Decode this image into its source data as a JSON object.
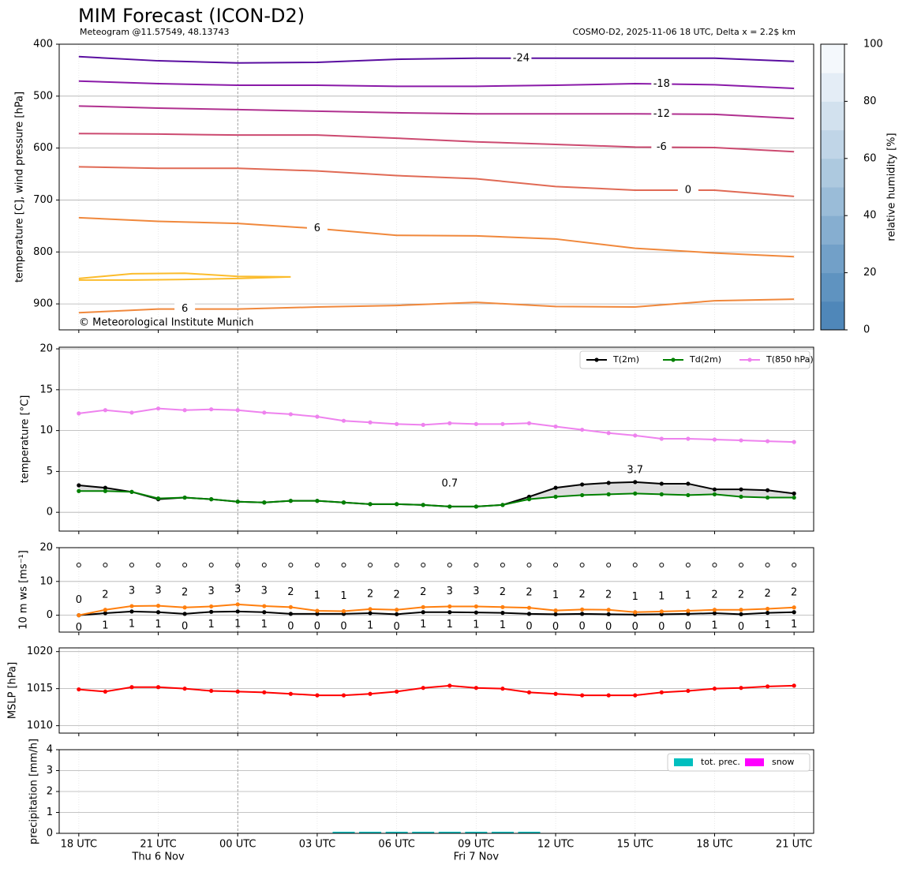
{
  "chart_data": [
    {
      "type": "contour",
      "title": "MIM Forecast (ICON-D2)",
      "subtitle": "Meteogram @11.57549, 48.13743",
      "info": "COSMO-D2, 2025-11-06 18 UTC, Delta x = 2.2$ km",
      "credit": "© Meteorological Institute Munich",
      "ylabel": "temperature [C], wind pressure [hPa]",
      "xlim": [
        -0.74,
        27.74
      ],
      "ylim": [
        950,
        400
      ],
      "yticks": [
        400,
        500,
        600,
        700,
        800,
        900
      ],
      "grid": true,
      "contours": [
        {
          "level": -24,
          "color": "#5a0ea0",
          "x": [
            0,
            3,
            6,
            9,
            12,
            15,
            18,
            21,
            24,
            27
          ],
          "values": [
            424,
            432,
            436,
            435,
            429,
            427,
            427,
            427,
            427,
            433
          ]
        },
        {
          "level": -18,
          "color": "#8a1aa8",
          "x": [
            0,
            3,
            6,
            9,
            12,
            15,
            18,
            21,
            24,
            27
          ],
          "values": [
            471,
            476,
            479,
            479,
            481,
            481,
            479,
            476,
            478,
            485
          ]
        },
        {
          "level": -12,
          "color": "#b0308f",
          "x": [
            0,
            3,
            6,
            9,
            12,
            15,
            18,
            21,
            24,
            27
          ],
          "values": [
            519,
            523,
            526,
            529,
            532,
            534,
            534,
            534,
            535,
            543
          ]
        },
        {
          "level": -6,
          "color": "#cc4a70",
          "x": [
            0,
            3,
            6,
            9,
            12,
            15,
            18,
            21,
            24,
            27
          ],
          "values": [
            572,
            573,
            575,
            575,
            581,
            588,
            593,
            598,
            599,
            607
          ]
        },
        {
          "level": 0,
          "color": "#e06a55",
          "x": [
            0,
            3,
            6,
            9,
            12,
            15,
            18,
            21,
            24,
            27
          ],
          "values": [
            636,
            639,
            639,
            644,
            653,
            659,
            674,
            681,
            681,
            693
          ]
        },
        {
          "level": 6,
          "color": "#f0883c",
          "x": [
            0,
            3,
            6,
            9,
            12,
            15,
            18,
            21,
            24,
            27
          ],
          "values": [
            734,
            741,
            745,
            755,
            768,
            769,
            775,
            793,
            802,
            809
          ]
        },
        {
          "level": 6,
          "color": "#f0883c",
          "x": [
            0,
            3,
            6,
            9,
            12,
            15,
            18,
            21,
            24,
            27
          ],
          "values": [
            917,
            910,
            910,
            906,
            903,
            897,
            905,
            906,
            894,
            891
          ]
        },
        {
          "color": "#fbbc2c",
          "x": [
            0,
            2,
            4,
            6,
            8,
            6,
            4,
            2,
            0
          ],
          "values": [
            851,
            842,
            841,
            847,
            848,
            851,
            853,
            854,
            854
          ]
        }
      ],
      "colorbar": {
        "label": "relative humidity [%]",
        "lim": [
          0,
          100
        ],
        "ticks": [
          0,
          20,
          40,
          60,
          80,
          100
        ],
        "colors": [
          "#4f87b9",
          "#5f93c0",
          "#72a0c8",
          "#86aed0",
          "#9abcd8",
          "#adc9df",
          "#c0d5e7",
          "#d2e1ee",
          "#e4edf6",
          "#f4f8fc"
        ]
      }
    },
    {
      "type": "line",
      "ylabel": "temperature [°C]",
      "xlim": [
        -0.74,
        27.74
      ],
      "ylim": [
        -2.3,
        20.2
      ],
      "yticks": [
        0,
        5,
        10,
        15,
        20
      ],
      "grid": true,
      "legend": "upper right",
      "x": [
        0,
        1,
        2,
        3,
        4,
        5,
        6,
        7,
        8,
        9,
        10,
        11,
        12,
        13,
        14,
        15,
        16,
        17,
        18,
        19,
        20,
        21,
        22,
        23,
        24,
        25,
        26,
        27
      ],
      "fill_between": {
        "color": "#dddddd"
      },
      "extrema_colors": {
        "min": "#0000ff",
        "max": "#ff0000"
      },
      "series": [
        {
          "name": "T(2m)",
          "color": "#000000",
          "values": [
            3.3,
            3.0,
            2.5,
            1.6,
            1.8,
            1.6,
            1.3,
            1.2,
            1.4,
            1.4,
            1.2,
            1.0,
            1.0,
            0.9,
            0.7,
            0.7,
            0.9,
            1.9,
            3.0,
            3.4,
            3.6,
            3.7,
            3.5,
            3.5,
            2.8,
            2.8,
            2.7,
            2.3
          ]
        },
        {
          "name": "Td(2m)",
          "color": "#008000",
          "values": [
            2.6,
            2.6,
            2.5,
            1.7,
            1.8,
            1.6,
            1.3,
            1.2,
            1.4,
            1.4,
            1.2,
            1.0,
            1.0,
            0.9,
            0.7,
            0.7,
            0.9,
            1.6,
            1.9,
            2.1,
            2.2,
            2.3,
            2.2,
            2.1,
            2.2,
            1.9,
            1.8,
            1.8
          ]
        },
        {
          "name": "T(850 hPa)",
          "color": "#ee82ee",
          "values": [
            12.1,
            12.5,
            12.2,
            12.7,
            12.5,
            12.6,
            12.5,
            12.2,
            12.0,
            11.7,
            11.2,
            11.0,
            10.8,
            10.7,
            10.9,
            10.8,
            10.8,
            10.9,
            10.5,
            10.1,
            9.7,
            9.4,
            9.0,
            9.0,
            8.9,
            8.8,
            8.7,
            8.6
          ]
        }
      ]
    },
    {
      "type": "line",
      "ylabel": "10 m ws [ms⁻¹]",
      "xlim": [
        -0.74,
        27.74
      ],
      "ylim": [
        -5,
        20
      ],
      "yticks": [
        0,
        10,
        20
      ],
      "grid": true,
      "x": [
        0,
        1,
        2,
        3,
        4,
        5,
        6,
        7,
        8,
        9,
        10,
        11,
        12,
        13,
        14,
        15,
        16,
        17,
        18,
        19,
        20,
        21,
        22,
        23,
        24,
        25,
        26,
        27
      ],
      "series": [
        {
          "color": "#000000",
          "label_side": "below",
          "values": [
            0.0,
            0.6,
            1.1,
            0.9,
            0.4,
            1.0,
            1.1,
            0.9,
            0.4,
            0.4,
            0.4,
            0.6,
            0.3,
            0.9,
            0.9,
            0.8,
            0.7,
            0.4,
            0.3,
            0.4,
            0.3,
            0.2,
            0.3,
            0.4,
            0.6,
            0.3,
            0.7,
            0.9
          ],
          "value_labels": [
            "0",
            "1",
            "1",
            "1",
            "0",
            "1",
            "1",
            "1",
            "0",
            "0",
            "0",
            "1",
            "0",
            "1",
            "1",
            "1",
            "1",
            "0",
            "0",
            "0",
            "0",
            "0",
            "0",
            "0",
            "1",
            "0",
            "1",
            "1"
          ]
        },
        {
          "color": "#ff7f0e",
          "label_side": "above",
          "values": [
            0.0,
            1.6,
            2.7,
            2.8,
            2.3,
            2.6,
            3.2,
            2.7,
            2.4,
            1.3,
            1.2,
            1.8,
            1.6,
            2.4,
            2.6,
            2.6,
            2.4,
            2.2,
            1.4,
            1.7,
            1.6,
            0.9,
            1.1,
            1.3,
            1.6,
            1.6,
            1.9,
            2.3
          ],
          "value_labels": [
            "0",
            "2",
            "3",
            "3",
            "2",
            "3",
            "3",
            "3",
            "2",
            "1",
            "1",
            "2",
            "2",
            "2",
            "3",
            "3",
            "2",
            "2",
            "1",
            "2",
            "2",
            "1",
            "1",
            "1",
            "2",
            "2",
            "2",
            "2"
          ]
        }
      ]
    },
    {
      "type": "line",
      "ylabel": "MSLP [hPa]",
      "xlim": [
        -0.74,
        27.74
      ],
      "ylim": [
        1009,
        1020.5
      ],
      "yticks": [
        1010,
        1015,
        1020
      ],
      "grid": true,
      "x": [
        0,
        1,
        2,
        3,
        4,
        5,
        6,
        7,
        8,
        9,
        10,
        11,
        12,
        13,
        14,
        15,
        16,
        17,
        18,
        19,
        20,
        21,
        22,
        23,
        24,
        25,
        26,
        27
      ],
      "series": [
        {
          "color": "#ff0000",
          "values": [
            1014.9,
            1014.6,
            1015.2,
            1015.2,
            1015.0,
            1014.7,
            1014.6,
            1014.5,
            1014.3,
            1014.1,
            1014.1,
            1014.3,
            1014.6,
            1015.1,
            1015.4,
            1015.1,
            1015.0,
            1014.5,
            1014.3,
            1014.1,
            1014.1,
            1014.1,
            1014.5,
            1014.7,
            1015.0,
            1015.1,
            1015.3,
            1015.4
          ]
        }
      ]
    },
    {
      "type": "bar",
      "ylabel": "precipitation [mm/h]",
      "xlim": [
        -0.74,
        27.74
      ],
      "ylim": [
        0,
        4
      ],
      "yticks": [
        0,
        1,
        2,
        3,
        4
      ],
      "grid": true,
      "legend": "upper right",
      "x": [
        0,
        1,
        2,
        3,
        4,
        5,
        6,
        7,
        8,
        9,
        10,
        11,
        12,
        13,
        14,
        15,
        16,
        17,
        18,
        19,
        20,
        21,
        22,
        23,
        24,
        25,
        26,
        27
      ],
      "xticks": [
        {
          "value": 0,
          "label": "18 UTC"
        },
        {
          "value": 3,
          "label": "21 UTC"
        },
        {
          "value": 6,
          "label": "00 UTC"
        },
        {
          "value": 9,
          "label": "03 UTC"
        },
        {
          "value": 12,
          "label": "06 UTC"
        },
        {
          "value": 15,
          "label": "09 UTC"
        },
        {
          "value": 18,
          "label": "12 UTC"
        },
        {
          "value": 21,
          "label": "15 UTC"
        },
        {
          "value": 24,
          "label": "18 UTC"
        },
        {
          "value": 27,
          "label": "21 UTC"
        }
      ],
      "date_labels": [
        {
          "value": 3,
          "label": "Thu 6 Nov"
        },
        {
          "value": 15,
          "label": "Fri 7 Nov"
        }
      ],
      "day_break": 6,
      "series": [
        {
          "name": "tot. prec.",
          "color": "#00bfbf",
          "values": [
            0,
            0,
            0,
            0,
            0,
            0,
            0,
            0,
            0,
            0,
            0.02,
            0.02,
            0.02,
            0.02,
            0.02,
            0.02,
            0.02,
            0.02,
            0,
            0,
            0,
            0,
            0,
            0,
            0,
            0,
            0,
            0
          ]
        },
        {
          "name": "snow",
          "color": "#ff00ff",
          "values": [
            0,
            0,
            0,
            0,
            0,
            0,
            0,
            0,
            0,
            0,
            0,
            0,
            0,
            0,
            0,
            0,
            0,
            0,
            0,
            0,
            0,
            0,
            0,
            0,
            0,
            0,
            0,
            0
          ]
        }
      ]
    }
  ]
}
